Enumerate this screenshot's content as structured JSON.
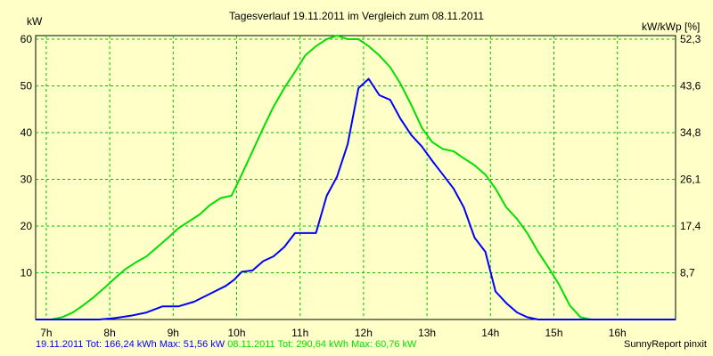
{
  "chart_data": {
    "type": "line",
    "title": "Tagesverlauf 19.11.2011 im Vergleich zum 08.11.2011",
    "ylabel_left": "kW",
    "ylabel_right": "kW/kWp [%]",
    "x_ticks": [
      "7h",
      "8h",
      "9h",
      "10h",
      "11h",
      "12h",
      "13h",
      "14h",
      "15h",
      "16h"
    ],
    "y_ticks_left": [
      "10",
      "20",
      "30",
      "40",
      "50",
      "60"
    ],
    "y_ticks_right": [
      "8,7",
      "17,4",
      "26,1",
      "34,8",
      "43,6",
      "52,3"
    ],
    "xlim": [
      6.833,
      16.917
    ],
    "ylim": [
      0,
      60.76
    ],
    "grid": true,
    "background": "#ffffc8",
    "plot_background": "#ffffc8",
    "grid_color": "#00c000",
    "series": [
      {
        "name": "19.11.2011",
        "color": "#0000ff",
        "x": [
          6.83,
          7.08,
          7.33,
          7.58,
          7.83,
          8.08,
          8.33,
          8.58,
          8.83,
          9.08,
          9.33,
          9.58,
          9.83,
          9.96,
          10.08,
          10.25,
          10.42,
          10.58,
          10.75,
          10.92,
          11.08,
          11.25,
          11.42,
          11.58,
          11.75,
          11.92,
          12.08,
          12.25,
          12.42,
          12.58,
          12.75,
          12.92,
          13.08,
          13.25,
          13.42,
          13.58,
          13.75,
          13.92,
          14.08,
          14.25,
          14.42,
          14.58,
          14.75,
          14.92,
          15.08,
          15.25,
          15.42,
          15.58,
          15.75,
          15.92,
          16.08,
          16.25,
          16.42,
          16.58,
          16.92
        ],
        "y": [
          0,
          0,
          0,
          0,
          0,
          0.3,
          0.8,
          1.5,
          2.8,
          2.8,
          3.8,
          5.5,
          7.2,
          8.5,
          10.2,
          10.5,
          12.5,
          13.5,
          15.5,
          18.5,
          18.5,
          18.5,
          26.5,
          30.5,
          37.5,
          49.5,
          51.5,
          48,
          47,
          43,
          39.5,
          37,
          34,
          31,
          28,
          24,
          17.5,
          14.5,
          6,
          3.5,
          1.5,
          0.5,
          0,
          0,
          0,
          0,
          0,
          0,
          0,
          0,
          0,
          0,
          0,
          0,
          0
        ]
      },
      {
        "name": "08.11.2011",
        "color": "#00e000",
        "x": [
          6.83,
          7.08,
          7.25,
          7.42,
          7.58,
          7.75,
          7.92,
          8.08,
          8.25,
          8.42,
          8.58,
          8.75,
          8.92,
          9.08,
          9.25,
          9.42,
          9.58,
          9.75,
          9.92,
          10.08,
          10.25,
          10.42,
          10.58,
          10.75,
          10.92,
          11.08,
          11.25,
          11.42,
          11.58,
          11.75,
          11.92,
          12.08,
          12.25,
          12.42,
          12.58,
          12.75,
          12.92,
          13.08,
          13.25,
          13.42,
          13.58,
          13.75,
          13.92,
          14.08,
          14.25,
          14.42,
          14.58,
          14.75,
          14.92,
          15.08,
          15.25,
          15.42,
          15.58,
          15.75,
          15.92,
          16.08,
          16.25,
          16.42,
          16.58,
          16.92
        ],
        "y": [
          0,
          0,
          0.5,
          1.5,
          3,
          4.8,
          6.8,
          8.8,
          10.8,
          12.3,
          13.5,
          15.5,
          17.5,
          19.5,
          21,
          22.5,
          24.5,
          26,
          26.5,
          31,
          36,
          41,
          45.5,
          49.5,
          53,
          56.5,
          58.5,
          60,
          60.76,
          60,
          60,
          58.5,
          56.5,
          54,
          50.5,
          46,
          41,
          38,
          36.5,
          36,
          34.5,
          33,
          31,
          28,
          24,
          21.5,
          18.5,
          14.5,
          11,
          7.5,
          3,
          0.5,
          0,
          0,
          0,
          0,
          0,
          0,
          0,
          0
        ]
      }
    ],
    "footer_left": [
      {
        "text": "19.11.2011 Tot: 166,24 kWh Max: 51,56 kW ",
        "color": "#0000ff"
      },
      {
        "text": "08.11.2011 Tot: 290,64 kWh Max: 60,76 kW",
        "color": "#00e000"
      }
    ],
    "footer_right": "SunnyReport pinxit"
  }
}
